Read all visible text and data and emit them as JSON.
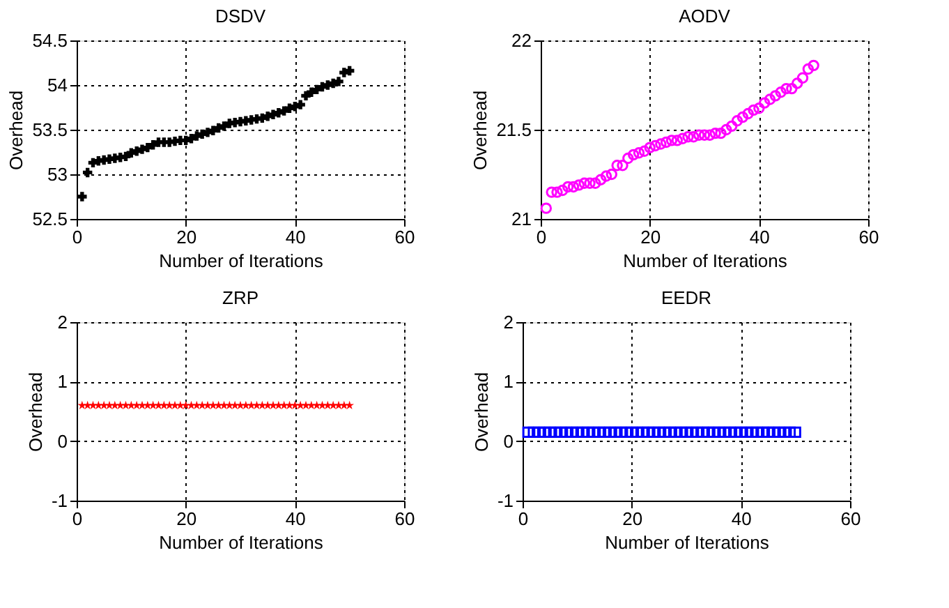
{
  "chart_data": [
    {
      "type": "scatter",
      "title": "DSDV",
      "xlabel": "Number of Iterations",
      "ylabel": "Overhead",
      "marker": "cross",
      "grid": true,
      "xlim": [
        0,
        60
      ],
      "xticks": [
        0,
        20,
        40,
        60
      ],
      "ylim": [
        52.5,
        54.5
      ],
      "yticks": [
        52.5,
        53,
        53.5,
        54,
        54.5
      ],
      "x": [
        1,
        2,
        3,
        4,
        5,
        6,
        7,
        8,
        9,
        10,
        11,
        12,
        13,
        14,
        15,
        16,
        17,
        18,
        19,
        20,
        21,
        22,
        23,
        24,
        25,
        26,
        27,
        28,
        29,
        30,
        31,
        32,
        33,
        34,
        35,
        36,
        37,
        38,
        39,
        40,
        41,
        42,
        43,
        44,
        45,
        46,
        47,
        48,
        49,
        50
      ],
      "series": [
        {
          "color": "#000000",
          "values": [
            52.75,
            53.02,
            53.13,
            53.15,
            53.16,
            53.17,
            53.18,
            53.19,
            53.2,
            53.24,
            53.26,
            53.28,
            53.3,
            53.33,
            53.36,
            53.36,
            53.36,
            53.37,
            53.38,
            53.38,
            53.4,
            53.43,
            53.45,
            53.47,
            53.49,
            53.52,
            53.54,
            53.57,
            53.58,
            53.59,
            53.6,
            53.61,
            53.62,
            53.63,
            53.65,
            53.67,
            53.69,
            53.71,
            53.74,
            53.76,
            53.78,
            53.88,
            53.92,
            53.95,
            53.98,
            54.0,
            54.02,
            54.04,
            54.14,
            54.16
          ]
        }
      ]
    },
    {
      "type": "scatter",
      "title": "AODV",
      "xlabel": "Number of Iterations",
      "ylabel": "Overhead",
      "marker": "circle",
      "grid": true,
      "xlim": [
        0,
        60
      ],
      "xticks": [
        0,
        20,
        40,
        60
      ],
      "ylim": [
        21,
        22
      ],
      "yticks": [
        21,
        21.5,
        22
      ],
      "x": [
        1,
        2,
        3,
        4,
        5,
        6,
        7,
        8,
        9,
        10,
        11,
        12,
        13,
        14,
        15,
        16,
        17,
        18,
        19,
        20,
        21,
        22,
        23,
        24,
        25,
        26,
        27,
        28,
        29,
        30,
        31,
        32,
        33,
        34,
        35,
        36,
        37,
        38,
        39,
        40,
        41,
        42,
        43,
        44,
        45,
        46,
        47,
        48,
        49,
        50
      ],
      "series": [
        {
          "color": "#ff00ff",
          "values": [
            21.06,
            21.15,
            21.15,
            21.16,
            21.18,
            21.18,
            21.19,
            21.2,
            21.2,
            21.2,
            21.22,
            21.24,
            21.25,
            21.3,
            21.3,
            21.34,
            21.36,
            21.37,
            21.38,
            21.4,
            21.41,
            21.42,
            21.43,
            21.44,
            21.44,
            21.45,
            21.46,
            21.46,
            21.47,
            21.47,
            21.47,
            21.48,
            21.48,
            21.5,
            21.52,
            21.55,
            21.57,
            21.59,
            21.61,
            21.62,
            21.65,
            21.67,
            21.69,
            21.71,
            21.73,
            21.73,
            21.76,
            21.79,
            21.84,
            21.86
          ]
        }
      ]
    },
    {
      "type": "scatter",
      "title": "ZRP",
      "xlabel": "Number of Iterations",
      "ylabel": "Overhead",
      "marker": "star",
      "grid": true,
      "xlim": [
        0,
        60
      ],
      "xticks": [
        0,
        20,
        40,
        60
      ],
      "ylim": [
        -1,
        2
      ],
      "yticks": [
        -1,
        0,
        1,
        2
      ],
      "x": [
        1,
        2,
        3,
        4,
        5,
        6,
        7,
        8,
        9,
        10,
        11,
        12,
        13,
        14,
        15,
        16,
        17,
        18,
        19,
        20,
        21,
        22,
        23,
        24,
        25,
        26,
        27,
        28,
        29,
        30,
        31,
        32,
        33,
        34,
        35,
        36,
        37,
        38,
        39,
        40,
        41,
        42,
        43,
        44,
        45,
        46,
        47,
        48,
        49,
        50
      ],
      "series": [
        {
          "color": "#ff0000",
          "values": [
            0.6,
            0.6,
            0.6,
            0.6,
            0.6,
            0.6,
            0.6,
            0.6,
            0.6,
            0.6,
            0.6,
            0.6,
            0.6,
            0.6,
            0.6,
            0.6,
            0.6,
            0.6,
            0.6,
            0.6,
            0.6,
            0.6,
            0.6,
            0.6,
            0.6,
            0.6,
            0.6,
            0.6,
            0.6,
            0.6,
            0.6,
            0.6,
            0.6,
            0.6,
            0.6,
            0.6,
            0.6,
            0.6,
            0.6,
            0.6,
            0.6,
            0.6,
            0.6,
            0.6,
            0.6,
            0.6,
            0.6,
            0.6,
            0.6,
            0.6
          ]
        }
      ]
    },
    {
      "type": "scatter",
      "title": "EEDR",
      "xlabel": "Number of Iterations",
      "ylabel": "Overhead",
      "marker": "square",
      "grid": true,
      "xlim": [
        0,
        60
      ],
      "xticks": [
        0,
        20,
        40,
        60
      ],
      "ylim": [
        -1,
        2
      ],
      "yticks": [
        -1,
        0,
        1,
        2
      ],
      "x": [
        1,
        2,
        3,
        4,
        5,
        6,
        7,
        8,
        9,
        10,
        11,
        12,
        13,
        14,
        15,
        16,
        17,
        18,
        19,
        20,
        21,
        22,
        23,
        24,
        25,
        26,
        27,
        28,
        29,
        30,
        31,
        32,
        33,
        34,
        35,
        36,
        37,
        38,
        39,
        40,
        41,
        42,
        43,
        44,
        45,
        46,
        47,
        48,
        49,
        50
      ],
      "series": [
        {
          "color": "#0000ff",
          "values": [
            0.15,
            0.15,
            0.15,
            0.15,
            0.15,
            0.15,
            0.15,
            0.15,
            0.15,
            0.15,
            0.15,
            0.15,
            0.15,
            0.15,
            0.15,
            0.15,
            0.15,
            0.15,
            0.15,
            0.15,
            0.15,
            0.15,
            0.15,
            0.15,
            0.15,
            0.15,
            0.15,
            0.15,
            0.15,
            0.15,
            0.15,
            0.15,
            0.15,
            0.15,
            0.15,
            0.15,
            0.15,
            0.15,
            0.15,
            0.15,
            0.15,
            0.15,
            0.15,
            0.15,
            0.15,
            0.15,
            0.15,
            0.15,
            0.15,
            0.15
          ]
        }
      ]
    }
  ]
}
